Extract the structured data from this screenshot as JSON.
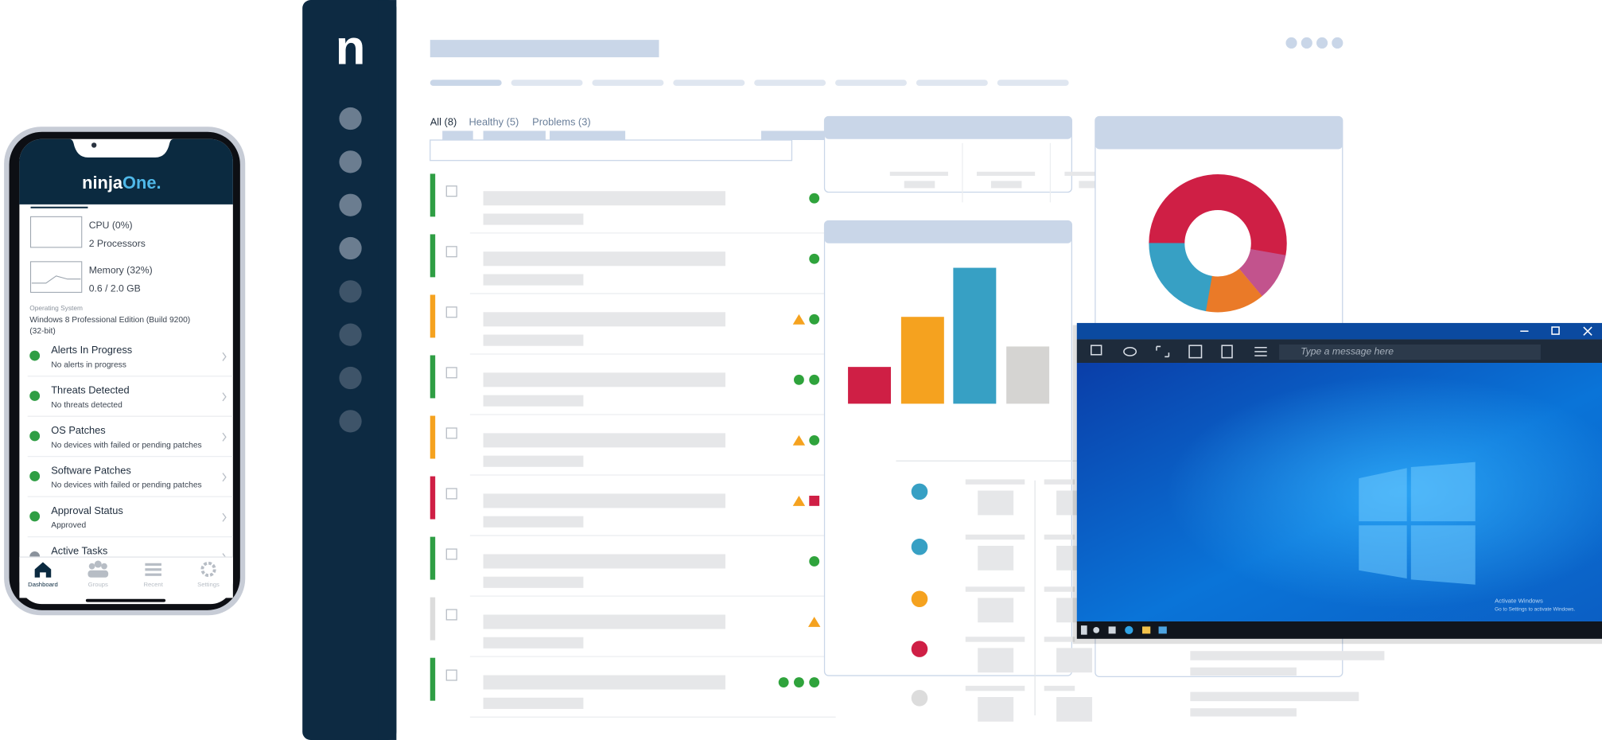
{
  "phone": {
    "logo_main": "ninja",
    "logo_accent": "One.",
    "metrics": [
      {
        "label": "CPU (0%)",
        "detail": "2 Processors"
      },
      {
        "label": "Memory (32%)",
        "detail": "0.6 / 2.0 GB"
      }
    ],
    "os": {
      "label": "Operating System",
      "lines": [
        "Windows 8 Professional Edition (Build 9200)",
        "(32-bit)"
      ]
    },
    "items": [
      {
        "title": "Alerts In Progress",
        "subtitle": "No alerts in progress"
      },
      {
        "title": "Threats Detected",
        "subtitle": "No threats detected"
      },
      {
        "title": "OS Patches",
        "subtitle": "No devices with failed or pending patches"
      },
      {
        "title": "Software Patches",
        "subtitle": "No devices with failed or pending patches"
      },
      {
        "title": "Approval Status",
        "subtitle": "Approved"
      },
      {
        "title": "Active Tasks"
      }
    ],
    "tabs": [
      "Dashboard",
      "Groups",
      "Recent",
      "Settings"
    ]
  },
  "dashboard": {
    "logo": "n",
    "filters": [
      "All (8)",
      "Healthy (5)",
      "Problems (3)"
    ]
  },
  "remote": {
    "message_placeholder": "Type a message here",
    "watermark": [
      "Activate Windows",
      "Go to Settings to activate Windows."
    ]
  }
}
